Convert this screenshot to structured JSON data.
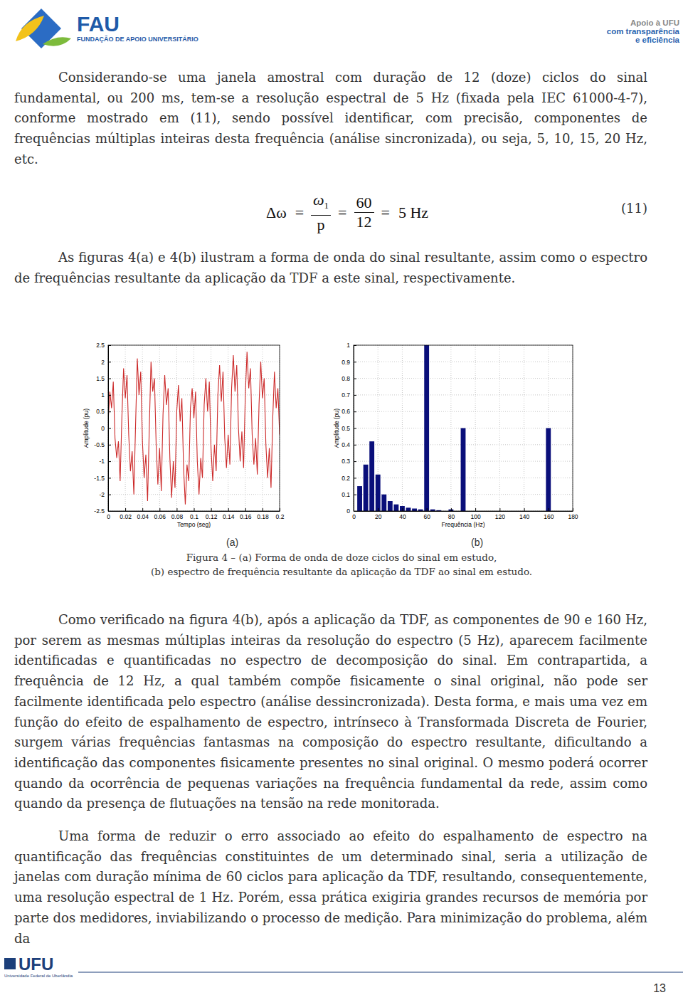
{
  "header": {
    "brand": "FAU",
    "brand_subtitle": "FUNDAÇÃO DE APOIO UNIVERSITÁRIO",
    "motto": [
      "Apoio à UFU",
      "com transparência",
      "e eficiência"
    ]
  },
  "paragraphs": [
    "Considerando-se uma janela amostral com duração de 12 (doze) ciclos do sinal fundamental, ou 200 ms, tem-se a resolução espectral de 5 Hz (fixada pela IEC 61000-4-7), conforme mostrado em (11), sendo possível identificar, com precisão, componentes de frequências múltiplas inteiras desta frequência (análise sincronizada), ou seja, 5, 10, 15, 20 Hz, etc.",
    "As figuras 4(a) e 4(b) ilustram a forma de onda do sinal resultante, assim como o espectro de frequências resultante da aplicação da TDF a este sinal, respectivamente.",
    "Como verificado na figura 4(b), após a aplicação da TDF, as componentes de 90 e 160 Hz, por serem as mesmas múltiplas inteiras da resolução do espectro (5 Hz), aparecem facilmente identificadas e quantificadas no espectro de decomposição do sinal. Em contrapartida, a frequência de 12 Hz, a qual também compõe fisicamente o sinal original, não pode ser facilmente identificada pelo espectro (análise dessincronizada). Desta forma, e mais uma vez em função do efeito de espalhamento de espectro, intrínseco à Transformada Discreta de Fourier, surgem várias frequências fantasmas na composição do espectro resultante, dificultando a identificação das componentes fisicamente presentes no sinal original. O mesmo poderá ocorrer quando da ocorrência de pequenas variações na frequência fundamental da rede, assim como quando da presença de flutuações na tensão na rede monitorada.",
    "Uma forma de reduzir o erro associado ao efeito do espalhamento de espectro na quantificação das frequências constituintes de um determinado sinal, seria a utilização de janelas com duração mínima de 60 ciclos para aplicação da TDF, resultando, consequentemente, uma resolução espectral de 1 Hz. Porém, essa prática exigiria grandes recursos de memória por parte dos medidores, inviabilizando o processo de medição. Para minimização do problema, além da"
  ],
  "equation": {
    "lhs": "Δω",
    "equals": "=",
    "frac1_num": "ω",
    "frac1_num_sub": "1",
    "frac1_den": "p",
    "frac2_num": "60",
    "frac2_den": "12",
    "result": "5 Hz",
    "number": "(11)"
  },
  "figure": {
    "sublabels": [
      "(a)",
      "(b)"
    ],
    "caption": [
      "Figura 4 – (a) Forma de onda de doze ciclos do sinal em estudo,",
      "(b) espectro de frequência resultante da aplicação da TDF ao sinal em estudo."
    ]
  },
  "chart_data": [
    {
      "type": "line",
      "color": "#cc2a2a",
      "xlabel": "Tempo (seg)",
      "ylabel": "Amplitude (pu)",
      "grid": true,
      "xlim": [
        0,
        0.2
      ],
      "ylim": [
        -2.5,
        2.5
      ],
      "xticks": [
        0,
        0.02,
        0.04,
        0.06,
        0.08,
        0.1,
        0.12,
        0.14,
        0.16,
        0.18,
        0.2
      ],
      "yticks": [
        -2.5,
        -2,
        -1.5,
        -1,
        -0.5,
        0,
        0.5,
        1,
        1.5,
        2,
        2.5
      ],
      "x": [
        0,
        0.002,
        0.004,
        0.006,
        0.008,
        0.01,
        0.012,
        0.014,
        0.016,
        0.018,
        0.02,
        0.022,
        0.024,
        0.026,
        0.028,
        0.03,
        0.032,
        0.034,
        0.036,
        0.038,
        0.04,
        0.042,
        0.044,
        0.046,
        0.048,
        0.05,
        0.052,
        0.054,
        0.056,
        0.058,
        0.06,
        0.062,
        0.064,
        0.066,
        0.068,
        0.07,
        0.072,
        0.074,
        0.076,
        0.078,
        0.08,
        0.082,
        0.084,
        0.086,
        0.088,
        0.09,
        0.092,
        0.094,
        0.096,
        0.098,
        0.1,
        0.102,
        0.104,
        0.106,
        0.108,
        0.11,
        0.112,
        0.114,
        0.116,
        0.118,
        0.12,
        0.122,
        0.124,
        0.126,
        0.128,
        0.13,
        0.132,
        0.134,
        0.136,
        0.138,
        0.14,
        0.142,
        0.144,
        0.146,
        0.148,
        0.15,
        0.152,
        0.154,
        0.156,
        0.158,
        0.16,
        0.162,
        0.164,
        0.166,
        0.168,
        0.17,
        0.172,
        0.174,
        0.176,
        0.178,
        0.18,
        0.182,
        0.184,
        0.186,
        0.188,
        0.19,
        0.192,
        0.194,
        0.196,
        0.198,
        0.2
      ],
      "values": [
        0.2,
        1.1,
        0.6,
        1.4,
        -0.3,
        -0.9,
        -0.4,
        -1.6,
        0.3,
        1.8,
        0.9,
        1.6,
        -0.2,
        -1.3,
        -0.7,
        -2.0,
        0.1,
        2.1,
        1.0,
        1.7,
        -0.4,
        -1.5,
        -0.8,
        -2.2,
        0.0,
        2.0,
        1.1,
        1.5,
        -0.5,
        -1.7,
        -0.6,
        -1.9,
        0.4,
        1.6,
        0.7,
        1.2,
        -0.9,
        -2.1,
        -1.0,
        -1.8,
        0.5,
        1.3,
        0.2,
        0.9,
        -1.2,
        -2.3,
        -1.1,
        -1.6,
        0.6,
        1.2,
        0.3,
        1.1,
        -1.0,
        -2.0,
        -0.9,
        -1.5,
        0.7,
        1.5,
        0.5,
        1.4,
        -0.6,
        -1.6,
        -0.5,
        -1.3,
        1.0,
        1.9,
        0.8,
        1.7,
        -0.3,
        -1.2,
        -0.2,
        -1.1,
        1.2,
        2.2,
        1.1,
        1.9,
        0.0,
        -1.0,
        -0.1,
        -1.2,
        1.0,
        2.3,
        1.2,
        1.8,
        -0.2,
        -1.1,
        -0.3,
        -1.4,
        0.7,
        2.0,
        0.9,
        1.5,
        -0.5,
        -1.5,
        -0.6,
        -1.8,
        0.3,
        1.7,
        0.6,
        1.2,
        -0.2
      ]
    },
    {
      "type": "bar",
      "color": "#0a0f7a",
      "xlabel": "Frequência (Hz)",
      "ylabel": "Amplitude (pu)",
      "grid": true,
      "xlim": [
        0,
        180
      ],
      "ylim": [
        0,
        1
      ],
      "xticks": [
        0,
        20,
        40,
        60,
        80,
        100,
        120,
        140,
        160,
        180
      ],
      "yticks": [
        0,
        0.1,
        0.2,
        0.3,
        0.4,
        0.5,
        0.6,
        0.7,
        0.8,
        0.9,
        1
      ],
      "x": [
        5,
        10,
        15,
        20,
        25,
        30,
        35,
        40,
        45,
        50,
        55,
        60,
        65,
        70,
        80,
        90,
        160
      ],
      "values": [
        0.15,
        0.28,
        0.42,
        0.22,
        0.1,
        0.06,
        0.04,
        0.03,
        0.02,
        0.015,
        0.01,
        1.0,
        0.01,
        0.005,
        0.01,
        0.5,
        0.5
      ]
    }
  ],
  "footer": {
    "logo": "UFU",
    "logo_subtitle": "Universidade Federal de Uberlândia",
    "page_number": "13"
  }
}
